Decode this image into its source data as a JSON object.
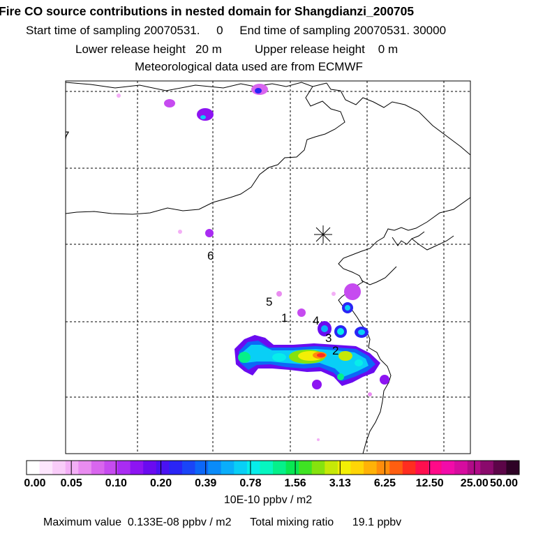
{
  "header": {
    "title": "Fire CO source contributions in nested domain for Shangdianzi_200705",
    "start_label": "Start time of sampling",
    "start_value": "20070531.     0",
    "end_label": "End time of sampling",
    "end_value": "20070531. 30000",
    "lower_label": "Lower release height",
    "lower_value": "20 m",
    "upper_label": "Upper release height",
    "upper_value": "0 m",
    "met_text": "Meteorological data used are from ECMWF"
  },
  "map": {
    "station_marker": "asterisk-icon",
    "labels": [
      "7",
      "6",
      "5",
      "1",
      "4",
      "3",
      "2"
    ]
  },
  "colorbar": {
    "tick_labels": [
      "0.00",
      "0.05",
      "0.10",
      "0.20",
      "0.39",
      "0.78",
      "1.56",
      "3.13",
      "6.25",
      "12.50",
      "25.00",
      "50.00"
    ],
    "colors": [
      "#ffffff",
      "#fde6fd",
      "#f9ccf9",
      "#f3aff6",
      "#e98cf0",
      "#d966ee",
      "#c64bf0",
      "#a92cf2",
      "#8d14f2",
      "#6a0bf0",
      "#4a12f2",
      "#2a25f5",
      "#1a45f7",
      "#0c67f8",
      "#0a8bf9",
      "#0aaefa",
      "#09cff6",
      "#07edea",
      "#06f6c0",
      "#05f08a",
      "#08e752",
      "#3fe323",
      "#86e20e",
      "#c6e807",
      "#f3ef05",
      "#ffd506",
      "#ffb207",
      "#ff8d0b",
      "#ff5e10",
      "#ff2d20",
      "#ff0f4e",
      "#ff0a88",
      "#f20ba9",
      "#d60c9f",
      "#b10b88",
      "#8a0a6c",
      "#5c0548",
      "#2e0226"
    ],
    "unit": "10E-10 ppbv / m2"
  },
  "footer": {
    "max_label": "Maximum value",
    "max_value": "0.133E-08 ppbv / m2",
    "total_label": "Total mixing ratio",
    "total_value": "19.1 ppbv"
  }
}
